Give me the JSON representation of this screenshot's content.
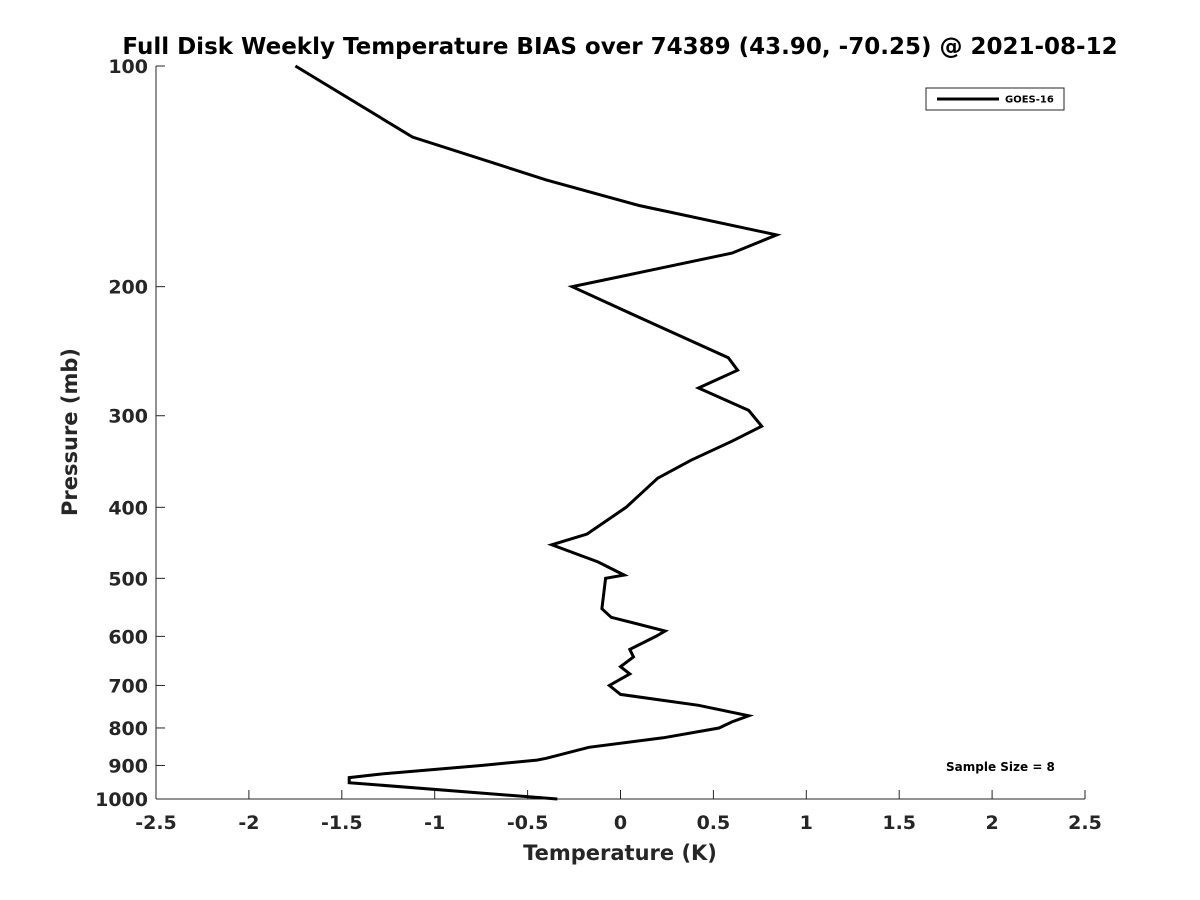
{
  "chart_data": {
    "type": "line",
    "title": "Full Disk Weekly Temperature BIAS over 74389 (43.90, -70.25) @ 2021-08-12",
    "xlabel": "Temperature (K)",
    "ylabel": "Pressure (mb)",
    "xlim": [
      -2.5,
      2.5
    ],
    "ylim": [
      1000,
      100
    ],
    "yscale": "log",
    "x_ticks": [
      "-2.5",
      "-2",
      "-1.5",
      "-1",
      "-0.5",
      "0",
      "0.5",
      "1",
      "1.5",
      "2",
      "2.5"
    ],
    "y_ticks": [
      "100",
      "200",
      "300",
      "400",
      "500",
      "600",
      "700",
      "800",
      "900",
      "1000"
    ],
    "grid": false,
    "legend": {
      "position": "top-right",
      "entries": [
        "GOES-16"
      ]
    },
    "annotation": "Sample Size = 8",
    "series": [
      {
        "name": "GOES-16",
        "color": "#000000",
        "points": [
          [
            -1.75,
            100
          ],
          [
            -1.12,
            125
          ],
          [
            -0.4,
            143
          ],
          [
            0.1,
            155
          ],
          [
            0.84,
            170
          ],
          [
            0.6,
            180
          ],
          [
            -0.26,
            200
          ],
          [
            0.13,
            222
          ],
          [
            0.58,
            250
          ],
          [
            0.63,
            260
          ],
          [
            0.42,
            275
          ],
          [
            0.69,
            295
          ],
          [
            0.76,
            310
          ],
          [
            0.6,
            325
          ],
          [
            0.38,
            345
          ],
          [
            0.2,
            365
          ],
          [
            0.03,
            400
          ],
          [
            -0.18,
            435
          ],
          [
            -0.37,
            450
          ],
          [
            -0.12,
            475
          ],
          [
            0.02,
            495
          ],
          [
            -0.08,
            500
          ],
          [
            -0.1,
            550
          ],
          [
            -0.05,
            565
          ],
          [
            0.24,
            590
          ],
          [
            0.19,
            600
          ],
          [
            0.05,
            625
          ],
          [
            0.07,
            640
          ],
          [
            0.0,
            660
          ],
          [
            0.05,
            675
          ],
          [
            -0.06,
            700
          ],
          [
            0.0,
            720
          ],
          [
            0.42,
            745
          ],
          [
            0.69,
            770
          ],
          [
            0.6,
            785
          ],
          [
            0.53,
            800
          ],
          [
            0.23,
            825
          ],
          [
            -0.17,
            850
          ],
          [
            -0.4,
            880
          ],
          [
            -0.45,
            885
          ],
          [
            -0.75,
            900
          ],
          [
            -1.3,
            925
          ],
          [
            -1.46,
            935
          ],
          [
            -1.46,
            950
          ],
          [
            -0.34,
            1000
          ]
        ]
      }
    ]
  }
}
